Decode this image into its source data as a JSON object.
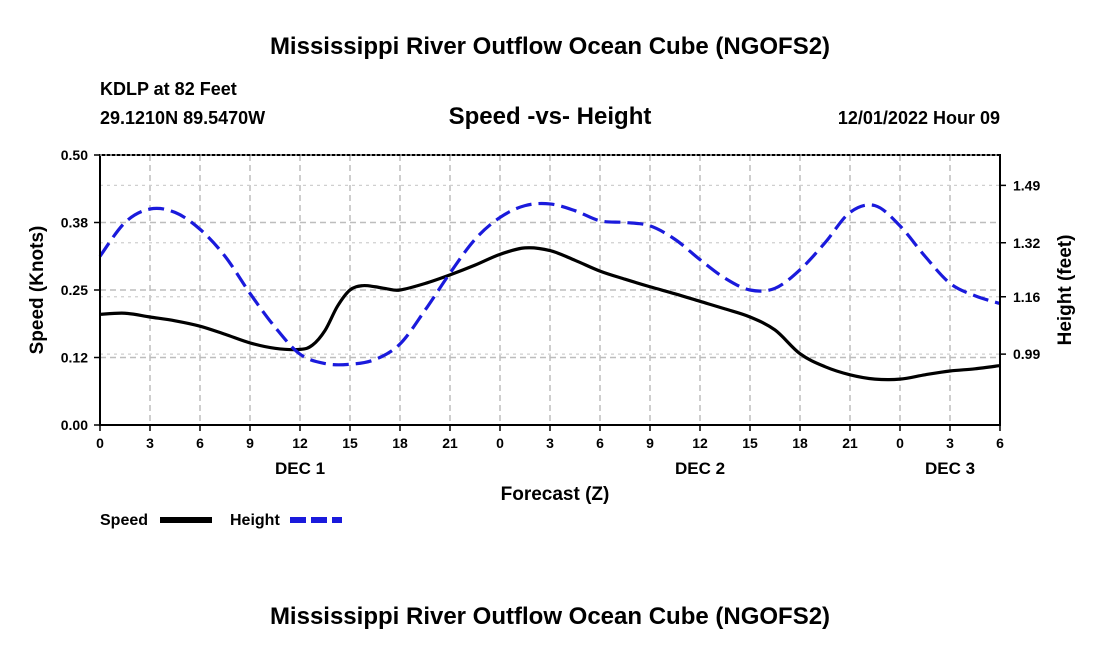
{
  "chart_data": {
    "type": "line",
    "title": "Mississippi River Outflow Ocean Cube (NGOFS2)",
    "footer_title": "Mississippi River Outflow Ocean Cube (NGOFS2)",
    "station": "KDLP at 82 Feet",
    "location": "29.1210N  89.5470W",
    "subtitle": "Speed -vs- Height",
    "datetime": "12/01/2022 Hour 09",
    "xlabel": "Forecast (Z)",
    "ylabel_left": "Speed (Knots)",
    "ylabel_right": "Height (feet)",
    "x_range": [
      0,
      54
    ],
    "x_tick_values": [
      0,
      3,
      6,
      9,
      12,
      15,
      18,
      21,
      24,
      27,
      30,
      33,
      36,
      39,
      42,
      45,
      48,
      51,
      54
    ],
    "x_tick_labels": [
      "0",
      "3",
      "6",
      "9",
      "12",
      "15",
      "18",
      "21",
      "0",
      "3",
      "6",
      "9",
      "12",
      "15",
      "18",
      "21",
      "0",
      "3",
      "6"
    ],
    "day_labels": [
      {
        "x": 12,
        "text": "DEC 1"
      },
      {
        "x": 36,
        "text": "DEC 2"
      },
      {
        "x": 51,
        "text": "DEC 3"
      }
    ],
    "ylim_left": [
      0,
      0.5
    ],
    "y_left_tick_values": [
      0,
      0.125,
      0.25,
      0.375,
      0.5
    ],
    "y_left_tick_labels": [
      "0.00",
      "0.12",
      "0.25",
      "0.38",
      "0.50"
    ],
    "ylim_right": [
      0.78,
      1.58
    ],
    "y_right_tick_values": [
      0.99,
      1.16,
      1.32,
      1.49
    ],
    "y_right_tick_labels": [
      "0.99",
      "1.16",
      "1.32",
      "1.49"
    ],
    "grid": true,
    "legend_position": "bottom-left",
    "series": [
      {
        "name": "Speed",
        "axis": "left",
        "color": "#000000",
        "style": "solid",
        "x": [
          0,
          1.5,
          3,
          4.5,
          6,
          7.5,
          9,
          10.5,
          12,
          12.75,
          13.5,
          14.25,
          15,
          15.75,
          16.5,
          17.25,
          18,
          19.5,
          21,
          22.5,
          24,
          25.5,
          27,
          28.5,
          30,
          31.5,
          33,
          34.5,
          36,
          37.5,
          39,
          40.5,
          42,
          43.5,
          45,
          46.5,
          48,
          49.5,
          51,
          52.5,
          54
        ],
        "values": [
          0.205,
          0.207,
          0.2,
          0.193,
          0.183,
          0.168,
          0.152,
          0.142,
          0.14,
          0.148,
          0.175,
          0.22,
          0.25,
          0.258,
          0.256,
          0.252,
          0.25,
          0.262,
          0.278,
          0.296,
          0.316,
          0.328,
          0.323,
          0.305,
          0.285,
          0.27,
          0.256,
          0.243,
          0.229,
          0.215,
          0.2,
          0.176,
          0.132,
          0.108,
          0.093,
          0.085,
          0.085,
          0.093,
          0.1,
          0.104,
          0.11
        ]
      },
      {
        "name": "Height",
        "axis": "right",
        "color": "#1a1adc",
        "style": "dashed",
        "x": [
          0,
          1.5,
          3,
          4.5,
          6,
          7.5,
          9,
          10.5,
          12,
          13.5,
          15,
          16.5,
          18,
          19.5,
          21,
          22.5,
          24,
          25.5,
          27,
          28.5,
          30,
          31.5,
          33,
          34.5,
          36,
          37.5,
          39,
          40.5,
          42,
          43.5,
          45,
          46.5,
          48,
          49.5,
          51,
          52.5,
          54
        ],
        "values": [
          1.28,
          1.38,
          1.42,
          1.41,
          1.36,
          1.28,
          1.17,
          1.07,
          0.99,
          0.962,
          0.96,
          0.974,
          1.02,
          1.12,
          1.23,
          1.33,
          1.395,
          1.43,
          1.435,
          1.415,
          1.385,
          1.38,
          1.37,
          1.33,
          1.27,
          1.215,
          1.18,
          1.185,
          1.24,
          1.32,
          1.41,
          1.43,
          1.37,
          1.28,
          1.2,
          1.163,
          1.14
        ]
      }
    ]
  }
}
